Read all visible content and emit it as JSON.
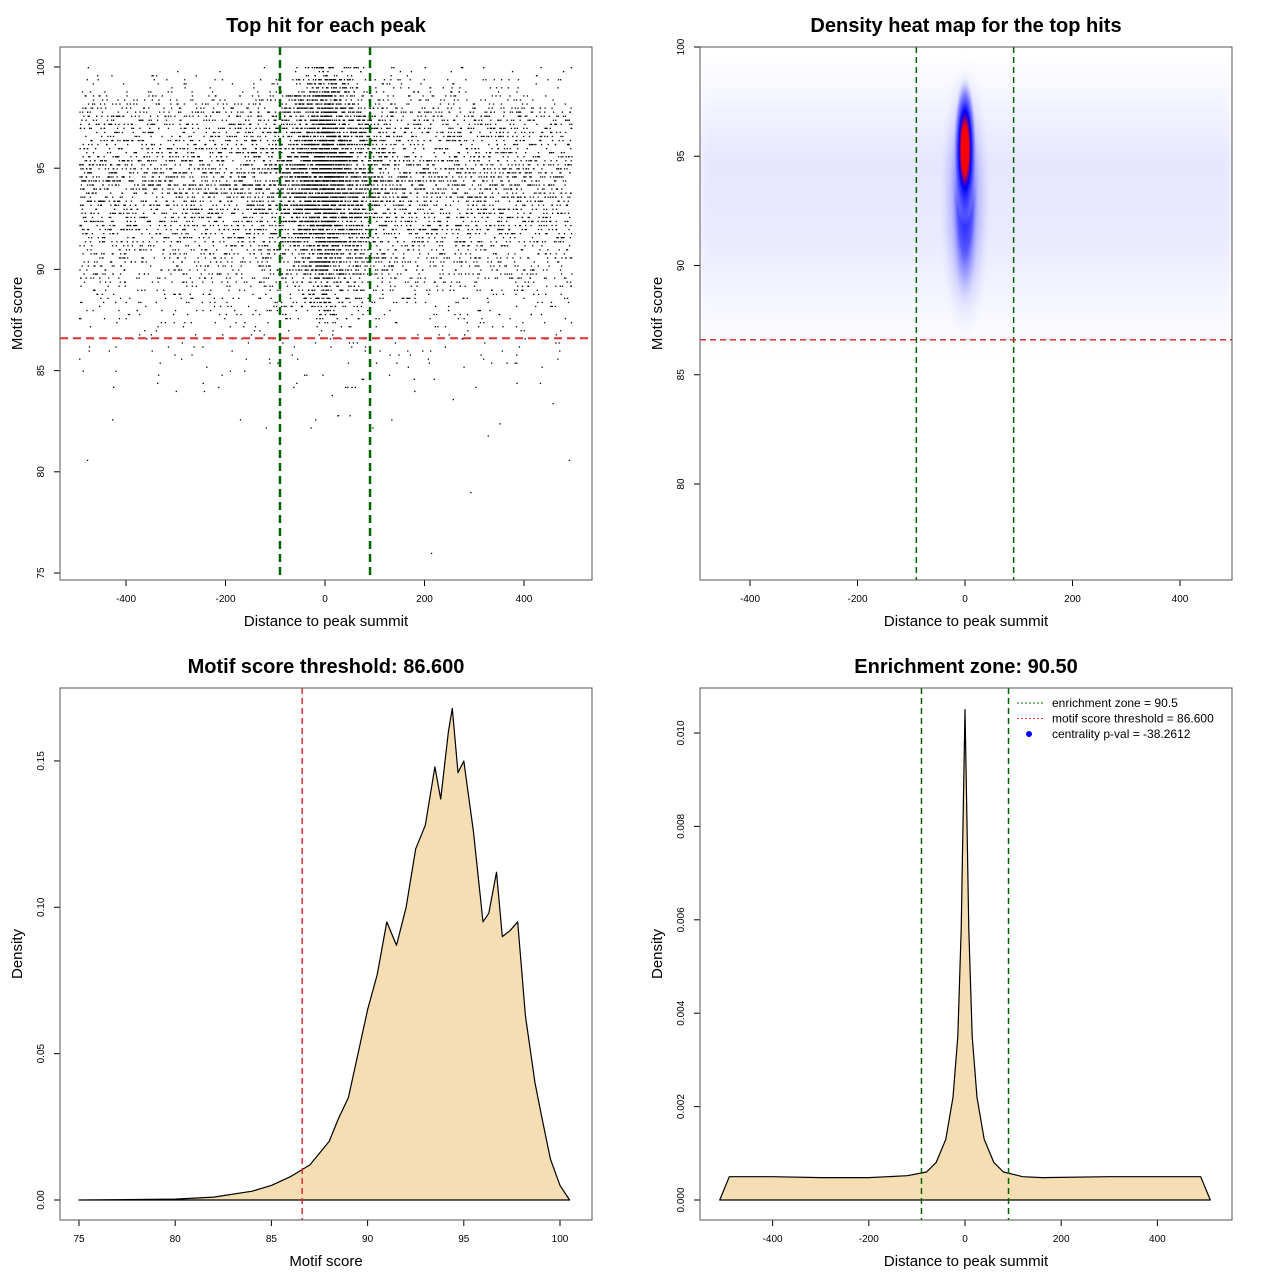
{
  "chart_data": [
    {
      "type": "scatter",
      "title": "Top hit for each peak",
      "xlabel": "Distance to peak summit",
      "ylabel": "Motif score",
      "xlim": [
        -500,
        500
      ],
      "ylim": [
        75,
        100
      ],
      "xticks": [
        "-400",
        "-200",
        "0",
        "200",
        "400"
      ],
      "yticks": [
        "75",
        "80",
        "85",
        "90",
        "95",
        "100"
      ],
      "vlines": [
        -90.5,
        90.5
      ],
      "hline": 86.6,
      "colors": {
        "points": "#000000",
        "vlines": "#006400",
        "hline": "#e03030"
      }
    },
    {
      "type": "heatmap",
      "title": "Density heat map for the top hits",
      "xlabel": "Distance to peak summit",
      "ylabel": "Motif score",
      "xlim": [
        -500,
        500
      ],
      "ylim": [
        75.5,
        100
      ],
      "xticks": [
        "-400",
        "-200",
        "0",
        "200",
        "400"
      ],
      "yticks": [
        "80",
        "85",
        "90",
        "95",
        "100"
      ],
      "vlines": [
        -90.5,
        90.5
      ],
      "hline": 86.6,
      "colors": {
        "low": "#ffffff",
        "mid": "#0000ff",
        "high": "#ff0000",
        "vlines": "#006400",
        "hline": "#e03030"
      }
    },
    {
      "type": "area",
      "title": "Motif score threshold: 86.600",
      "xlabel": "Motif score",
      "ylabel": "Density",
      "xlim": [
        75,
        100.5
      ],
      "ylim": [
        0,
        0.17
      ],
      "xticks": [
        "75",
        "80",
        "85",
        "90",
        "95",
        "100"
      ],
      "yticks": [
        "0.00",
        "0.05",
        "0.10",
        "0.15"
      ],
      "vline": 86.6,
      "x": [
        75,
        80,
        82,
        84,
        85,
        86,
        87,
        88,
        88.5,
        89,
        89.5,
        90,
        90.5,
        91,
        91.5,
        92,
        92.5,
        93,
        93.5,
        93.8,
        94.2,
        94.4,
        94.7,
        95,
        95.5,
        96,
        96.3,
        96.7,
        97,
        97.4,
        97.8,
        98.2,
        98.7,
        99,
        99.5,
        100,
        100.5
      ],
      "y": [
        0,
        0.0003,
        0.001,
        0.003,
        0.005,
        0.008,
        0.012,
        0.02,
        0.028,
        0.035,
        0.05,
        0.065,
        0.077,
        0.095,
        0.087,
        0.1,
        0.12,
        0.128,
        0.148,
        0.137,
        0.16,
        0.168,
        0.146,
        0.15,
        0.126,
        0.095,
        0.098,
        0.112,
        0.09,
        0.092,
        0.095,
        0.063,
        0.04,
        0.03,
        0.014,
        0.005,
        0
      ],
      "colors": {
        "fill": "#f5deb3",
        "line": "#000000",
        "vline": "#e03030"
      }
    },
    {
      "type": "area",
      "title": "Enrichment zone: 90.50",
      "xlabel": "Distance to peak summit",
      "ylabel": "Density",
      "xlim": [
        -520,
        520
      ],
      "ylim": [
        0,
        0.0106
      ],
      "xticks": [
        "-400",
        "-200",
        "0",
        "200",
        "400"
      ],
      "yticks": [
        "0.000",
        "0.002",
        "0.004",
        "0.006",
        "0.008",
        "0.010"
      ],
      "vlines": [
        -90.5,
        90.5
      ],
      "x": [
        -510,
        -490,
        -400,
        -300,
        -200,
        -120,
        -80,
        -60,
        -40,
        -25,
        -15,
        -8,
        -3,
        0,
        3,
        8,
        15,
        25,
        40,
        60,
        80,
        120,
        160,
        300,
        400,
        490,
        510
      ],
      "y": [
        0,
        0.0005,
        0.0005,
        0.00048,
        0.00048,
        0.00052,
        0.0006,
        0.0008,
        0.0013,
        0.0022,
        0.0035,
        0.0058,
        0.0088,
        0.0105,
        0.0088,
        0.0058,
        0.0035,
        0.0022,
        0.0013,
        0.0008,
        0.0006,
        0.0005,
        0.00048,
        0.0005,
        0.0005,
        0.0005,
        0
      ],
      "legend": {
        "placement": "top-right",
        "entries": [
          "enrichment zone = 90.5",
          "motif score threshold = 86.600",
          "centrality p-val = -38.2612"
        ],
        "colors": [
          "#006400",
          "#e03030",
          "#0000ff"
        ]
      },
      "colors": {
        "fill": "#f5deb3",
        "line": "#000000",
        "vlines": "#006400"
      }
    }
  ]
}
